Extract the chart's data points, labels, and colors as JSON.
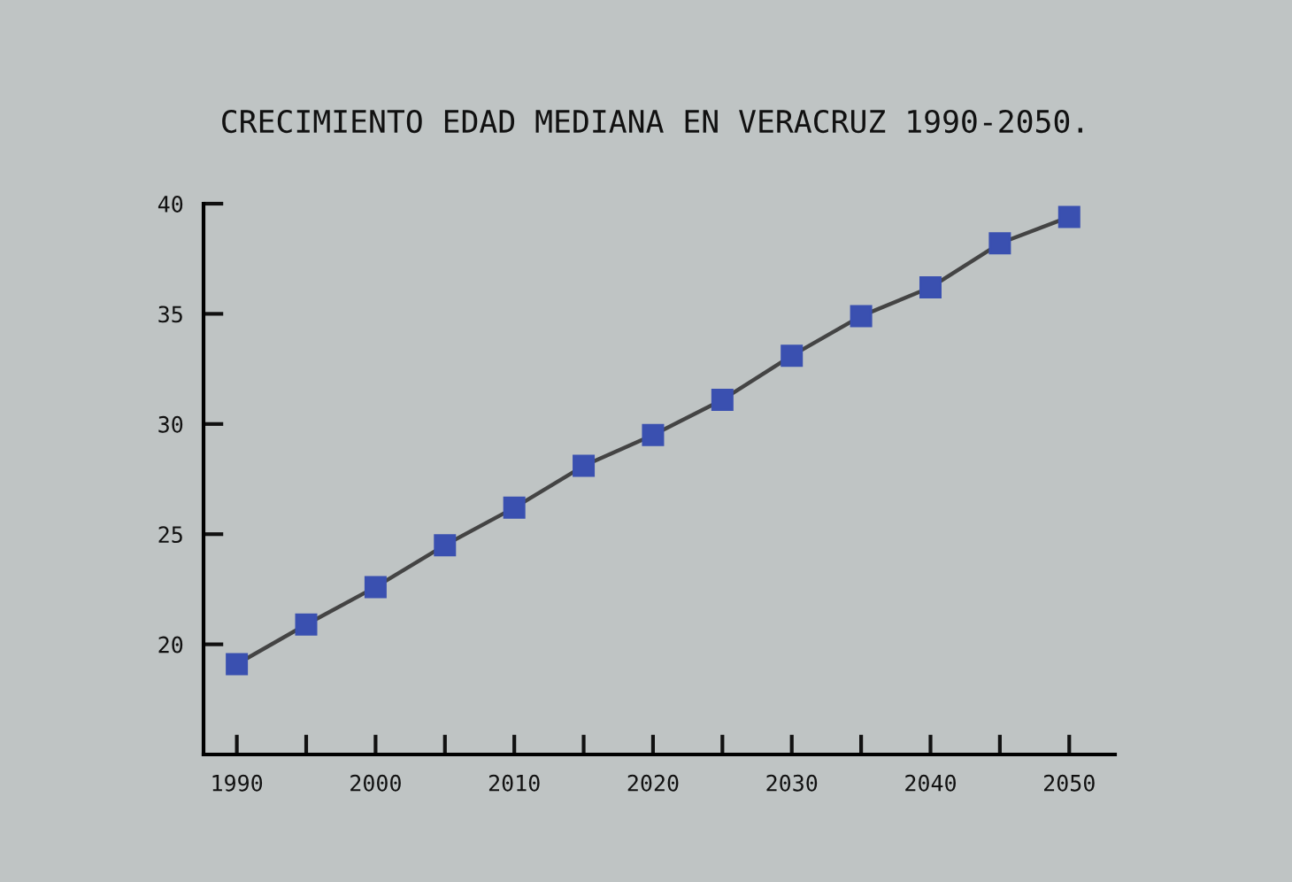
{
  "chart_data": {
    "type": "line",
    "title": "CRECIMIENTO EDAD MEDIANA EN VERACRUZ 1990-2050.",
    "x": [
      1990,
      1995,
      2000,
      2005,
      2010,
      2015,
      2020,
      2025,
      2030,
      2035,
      2040,
      2045,
      2050
    ],
    "series": [
      {
        "color": "#3a50b0",
        "values": [
          19.1,
          20.9,
          22.6,
          24.5,
          26.2,
          28.1,
          29.5,
          31.1,
          33.1,
          34.9,
          36.2,
          38.2,
          39.4
        ]
      }
    ],
    "xlim": [
      1987.6,
      2053.3
    ],
    "xticks": [
      1990,
      {
        "value": 1995,
        "label": null
      },
      2000,
      {
        "value": 2005,
        "label": null
      },
      2010,
      {
        "value": 2015,
        "label": null
      },
      2020,
      {
        "value": 2025,
        "label": null
      },
      2030,
      {
        "value": 2035,
        "label": null
      },
      2040,
      {
        "value": 2045,
        "label": null
      },
      2050
    ],
    "ylim": [
      15,
      40
    ],
    "yticks": [
      20,
      25,
      30,
      35,
      40
    ],
    "marker": "square",
    "line_style": "solid",
    "grid": false,
    "legend": false
  }
}
